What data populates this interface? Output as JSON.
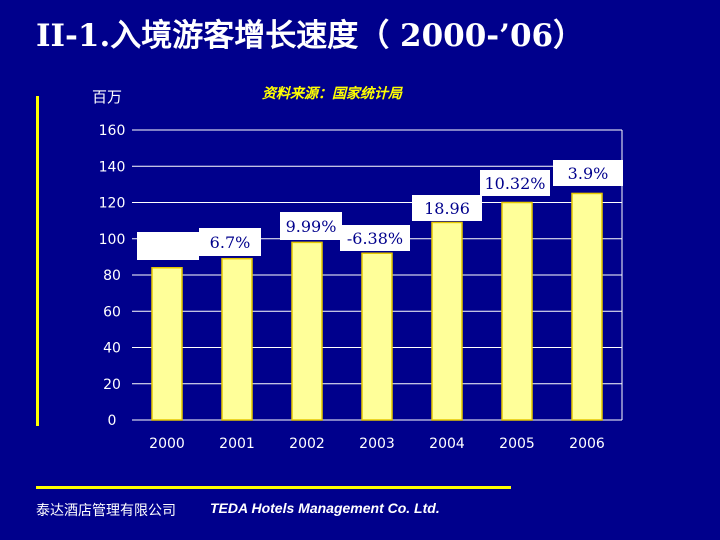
{
  "header": {
    "title": "II-1.入境游客增长速度（ 2000-’06）"
  },
  "unit_label": "百万",
  "source_label": "资料来源：国家统计局",
  "footer": {
    "company_cn": "泰达酒店管理有限公司",
    "company_en": "TEDA Hotels Management Co. Ltd."
  },
  "colors": {
    "background": "#00008c",
    "bar": "#ffff99",
    "bar_edge": "#e6c800",
    "label_box": "#ffffff",
    "accent": "#ffff00"
  },
  "chart_data": {
    "type": "bar",
    "categories": [
      "2000",
      "2001",
      "2002",
      "2003",
      "2004",
      "2005",
      "2006"
    ],
    "values": [
      84,
      89,
      98,
      92,
      109,
      120,
      125
    ],
    "ylim": [
      0,
      160
    ],
    "yticks": [
      0,
      20,
      40,
      60,
      80,
      100,
      120,
      140,
      160
    ],
    "grid": true,
    "annotations": [
      {
        "category": "2001",
        "text": "6.7%"
      },
      {
        "category": "2002",
        "text": "9.99%"
      },
      {
        "category": "2003",
        "text": "-6.38%"
      },
      {
        "category": "2004",
        "text": "18.96"
      },
      {
        "category": "2005",
        "text": "10.32%"
      },
      {
        "category": "2006",
        "text": "3.9%"
      }
    ]
  }
}
